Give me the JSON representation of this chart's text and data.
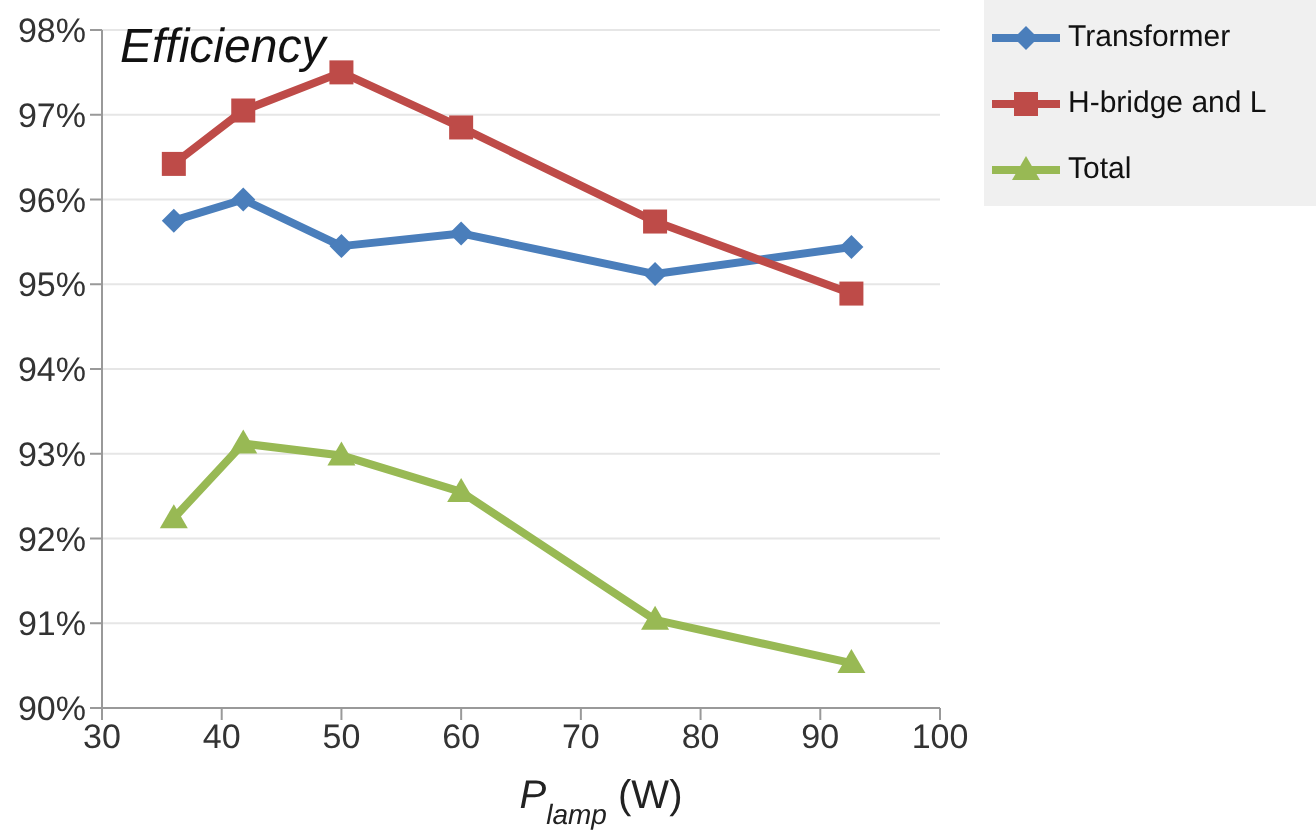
{
  "chart_data": {
    "type": "line",
    "title": "Efficiency",
    "xlabel": "P$_{lamp}$ (W)",
    "x": [
      36,
      41.8,
      50,
      60,
      76.2,
      92.6
    ],
    "series": [
      {
        "name": "Transformer",
        "color": "#4a7ebb",
        "marker": "diamond",
        "values": [
          95.75,
          96.0,
          95.45,
          95.6,
          95.12,
          95.44
        ]
      },
      {
        "name": "H-bridge and L",
        "color": "#be4b48",
        "marker": "square",
        "values": [
          96.42,
          97.05,
          97.5,
          96.85,
          95.74,
          94.89
        ]
      },
      {
        "name": "Total",
        "color": "#98b954",
        "marker": "triangle",
        "values": [
          92.24,
          93.12,
          92.98,
          92.55,
          91.04,
          90.53
        ]
      }
    ],
    "xlim": [
      30,
      100
    ],
    "xticks": [
      30,
      40,
      50,
      60,
      70,
      80,
      90,
      100
    ],
    "ylim": [
      90,
      98
    ],
    "yticks": [
      {
        "value": 90,
        "label": "90%"
      },
      {
        "value": 91,
        "label": "91%"
      },
      {
        "value": 92,
        "label": "92%"
      },
      {
        "value": 93,
        "label": "93%"
      },
      {
        "value": 94,
        "label": "94%"
      },
      {
        "value": 95,
        "label": "95%"
      },
      {
        "value": 96,
        "label": "96%"
      },
      {
        "value": 97,
        "label": "97%"
      },
      {
        "value": 98,
        "label": "98%"
      }
    ],
    "grid": "y",
    "legend": "top right",
    "line_style": "solid"
  }
}
